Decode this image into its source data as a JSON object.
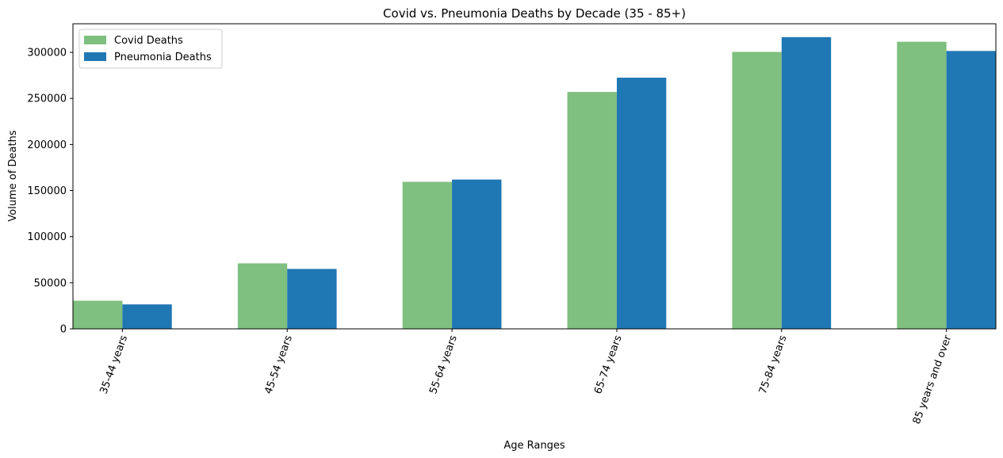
{
  "chart_data": {
    "type": "bar",
    "title": "Covid vs. Pneumonia Deaths by Decade (35 - 85+)",
    "xlabel": "Age Ranges",
    "ylabel": "Volume of Deaths",
    "categories": [
      "35-44 years",
      "45-54 years",
      "55-64 years",
      "65-74 years",
      "75-84 years",
      "85 years and over"
    ],
    "series": [
      {
        "name": "Covid Deaths",
        "color": "#7fbf7f",
        "values": [
          30500,
          71000,
          159500,
          257000,
          300500,
          311500
        ]
      },
      {
        "name": "Pneumonia Deaths",
        "color": "#1f77b4",
        "values": [
          26500,
          65000,
          162000,
          272500,
          316500,
          301500
        ]
      }
    ],
    "ylim": [
      0,
      331000
    ],
    "yticks": [
      0,
      50000,
      100000,
      150000,
      200000,
      250000,
      300000
    ],
    "ytick_labels": [
      "0",
      "50000",
      "100000",
      "150000",
      "200000",
      "250000",
      "300000"
    ],
    "grid": false,
    "legend_position": "top-left",
    "xtick_rotation_deg": 70
  }
}
